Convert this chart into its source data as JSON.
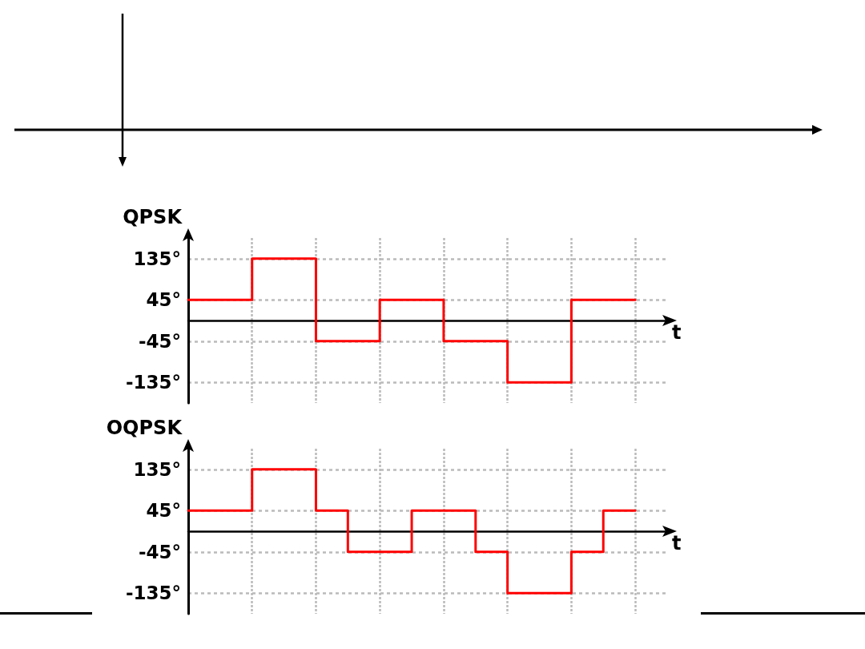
{
  "chart_data": [
    {
      "type": "step",
      "ylabel": "QPSK",
      "xlabel": "t",
      "categories": [
        null,
        null,
        null,
        null,
        null,
        null,
        null,
        null,
        null,
        null,
        null,
        null,
        null,
        null,
        null
      ],
      "values": [
        45,
        45,
        135,
        135,
        -45,
        -45,
        45,
        45,
        -45,
        -45,
        -135,
        -135,
        45,
        45,
        45
      ],
      "color": "#ff0000",
      "ylim": [
        -180,
        180
      ],
      "yticks": [
        {
          "value": -135,
          "label": "-135°"
        },
        {
          "value": -45,
          "label": "-45°"
        },
        {
          "value": 45,
          "label": "45°"
        },
        {
          "value": 135,
          "label": "135°"
        }
      ],
      "grid": true,
      "tick_labels": "y",
      "marker": "none"
    },
    {
      "type": "step",
      "ylabel": "OQPSK",
      "xlabel": "t",
      "categories": [
        null,
        null,
        null,
        null,
        null,
        null,
        null,
        null,
        null,
        null,
        null,
        null,
        null,
        null,
        null
      ],
      "values": [
        45,
        45,
        135,
        135,
        45,
        -45,
        -45,
        45,
        45,
        -45,
        -135,
        -135,
        -45,
        45,
        45
      ],
      "color": "#ff0000",
      "ylim": [
        -180,
        180
      ],
      "yticks": [
        {
          "value": -135,
          "label": "-135°"
        },
        {
          "value": -45,
          "label": "-45°"
        },
        {
          "value": 45,
          "label": "45°"
        },
        {
          "value": 135,
          "label": "135°"
        }
      ],
      "grid": true,
      "tick_labels": "y",
      "marker": "none"
    }
  ]
}
